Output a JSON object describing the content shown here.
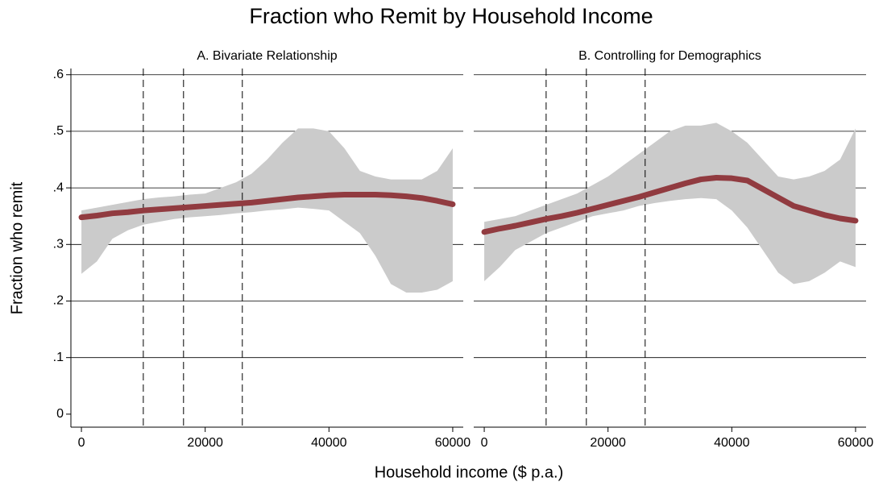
{
  "title": "Fraction who Remit by Household Income",
  "ylabel": "Fraction who remit",
  "xlabel": "Household income ($ p.a.)",
  "chart_data": [
    {
      "type": "line",
      "title": "A. Bivariate Relationship",
      "x": [
        0,
        2500,
        5000,
        7500,
        10000,
        12500,
        15000,
        17500,
        20000,
        22500,
        25000,
        27500,
        30000,
        32500,
        35000,
        37500,
        40000,
        42500,
        45000,
        47500,
        50000,
        52500,
        55000,
        57500,
        60000
      ],
      "values": [
        0.348,
        0.351,
        0.355,
        0.357,
        0.36,
        0.362,
        0.364,
        0.366,
        0.368,
        0.37,
        0.372,
        0.374,
        0.377,
        0.38,
        0.383,
        0.385,
        0.387,
        0.388,
        0.388,
        0.388,
        0.387,
        0.385,
        0.382,
        0.377,
        0.371
      ],
      "ci_lower": [
        0.248,
        0.27,
        0.31,
        0.325,
        0.335,
        0.34,
        0.345,
        0.348,
        0.35,
        0.352,
        0.355,
        0.357,
        0.36,
        0.362,
        0.365,
        0.363,
        0.36,
        0.34,
        0.32,
        0.28,
        0.23,
        0.215,
        0.215,
        0.22,
        0.235
      ],
      "ci_upper": [
        0.36,
        0.365,
        0.37,
        0.375,
        0.38,
        0.383,
        0.385,
        0.388,
        0.39,
        0.4,
        0.41,
        0.425,
        0.45,
        0.48,
        0.505,
        0.505,
        0.5,
        0.47,
        0.43,
        0.42,
        0.415,
        0.415,
        0.415,
        0.43,
        0.47
      ],
      "color": "#913b40",
      "band_color": "#cbcbcb",
      "vlines": [
        10000,
        16500,
        26000
      ],
      "xlim": [
        -1700,
        61700
      ],
      "xticks": [
        0,
        20000,
        40000,
        60000
      ],
      "ylim": [
        -0.023,
        0.611
      ],
      "yticks": [
        0,
        {
          "value": 0.1,
          "label": ".1"
        },
        {
          "value": 0.2,
          "label": ".2"
        },
        {
          "value": 0.3,
          "label": ".3"
        },
        {
          "value": 0.4,
          "label": ".4"
        },
        {
          "value": 0.5,
          "label": ".5"
        },
        {
          "value": 0.6,
          "label": ".6"
        }
      ],
      "grid": true
    },
    {
      "type": "line",
      "title": "B. Controlling for Demographics",
      "x": [
        0,
        2500,
        5000,
        7500,
        10000,
        12500,
        15000,
        17500,
        20000,
        22500,
        25000,
        27500,
        30000,
        32500,
        35000,
        37500,
        40000,
        42500,
        45000,
        47500,
        50000,
        52500,
        55000,
        57500,
        60000
      ],
      "values": [
        0.322,
        0.328,
        0.333,
        0.339,
        0.345,
        0.35,
        0.356,
        0.363,
        0.37,
        0.377,
        0.384,
        0.392,
        0.4,
        0.408,
        0.415,
        0.418,
        0.417,
        0.413,
        0.398,
        0.383,
        0.368,
        0.36,
        0.352,
        0.346,
        0.342
      ],
      "ci_lower": [
        0.235,
        0.26,
        0.29,
        0.305,
        0.32,
        0.33,
        0.34,
        0.35,
        0.355,
        0.36,
        0.368,
        0.373,
        0.377,
        0.38,
        0.382,
        0.38,
        0.36,
        0.33,
        0.29,
        0.25,
        0.23,
        0.235,
        0.25,
        0.27,
        0.26
      ],
      "ci_upper": [
        0.34,
        0.345,
        0.35,
        0.36,
        0.37,
        0.38,
        0.39,
        0.405,
        0.42,
        0.44,
        0.46,
        0.48,
        0.5,
        0.51,
        0.51,
        0.515,
        0.5,
        0.48,
        0.45,
        0.42,
        0.415,
        0.42,
        0.43,
        0.45,
        0.505
      ],
      "color": "#913b40",
      "band_color": "#cbcbcb",
      "vlines": [
        10000,
        16500,
        26000
      ],
      "xlim": [
        -1700,
        61700
      ],
      "xticks": [
        0,
        20000,
        40000,
        60000
      ],
      "ylim": [
        -0.023,
        0.611
      ],
      "yticks": [
        0,
        {
          "value": 0.1,
          "label": ".1"
        },
        {
          "value": 0.2,
          "label": ".2"
        },
        {
          "value": 0.3,
          "label": ".3"
        },
        {
          "value": 0.4,
          "label": ".4"
        },
        {
          "value": 0.5,
          "label": ".5"
        },
        {
          "value": 0.6,
          "label": ".6"
        }
      ],
      "grid": true
    }
  ]
}
